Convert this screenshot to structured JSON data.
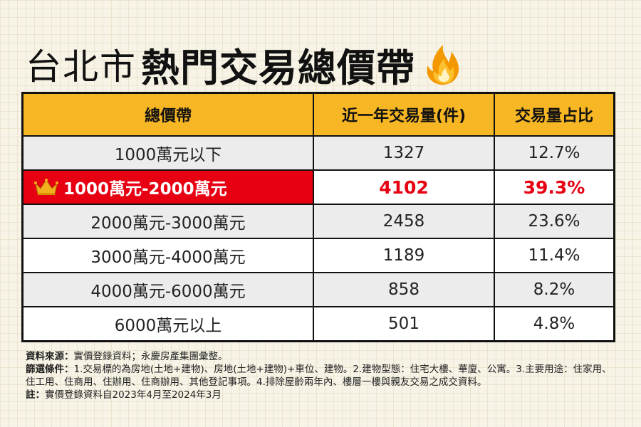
{
  "title": {
    "light": "台北市",
    "bold": "熱門交易總價帶"
  },
  "icons": {
    "title_icon": "flame-icon",
    "highlight_icon": "crown-icon"
  },
  "colors": {
    "header_bg": "#f7b623",
    "highlight": "#e60012",
    "flame": "#f39800",
    "crown": "#f2b01e"
  },
  "table": {
    "headers": [
      "總價帶",
      "近一年交易量(件)",
      "交易量占比"
    ],
    "rows": [
      {
        "range": "1000萬元以下",
        "volume": "1327",
        "share": "12.7%"
      },
      {
        "range": "1000萬元-2000萬元",
        "volume": "4102",
        "share": "39.3%",
        "highlight": true
      },
      {
        "range": "2000萬元-3000萬元",
        "volume": "2458",
        "share": "23.6%"
      },
      {
        "range": "3000萬元-4000萬元",
        "volume": "1189",
        "share": "11.4%"
      },
      {
        "range": "4000萬元-6000萬元",
        "volume": "858",
        "share": "8.2%"
      },
      {
        "range": "6000萬元以上",
        "volume": "501",
        "share": "4.8%"
      }
    ]
  },
  "notes": {
    "source_label": "資料來源：",
    "source": "實價登錄資料；永慶房產集團彙整。",
    "filter_label": "篩選條件：",
    "filter": "1.交易標的為房地(土地+建物)、房地(土地+建物)+車位、建物。2.建物型態：住宅大樓、華廈、公寓。3.主要用途：住家用、住工用、住商用、住辦用、住商辦用、其他登記事項。4.排除屋齡兩年內、樓層一樓與親友交易之成交資料。",
    "note_label": "註：",
    "note": "實價登錄資料自2023年4月至2024年3月"
  }
}
